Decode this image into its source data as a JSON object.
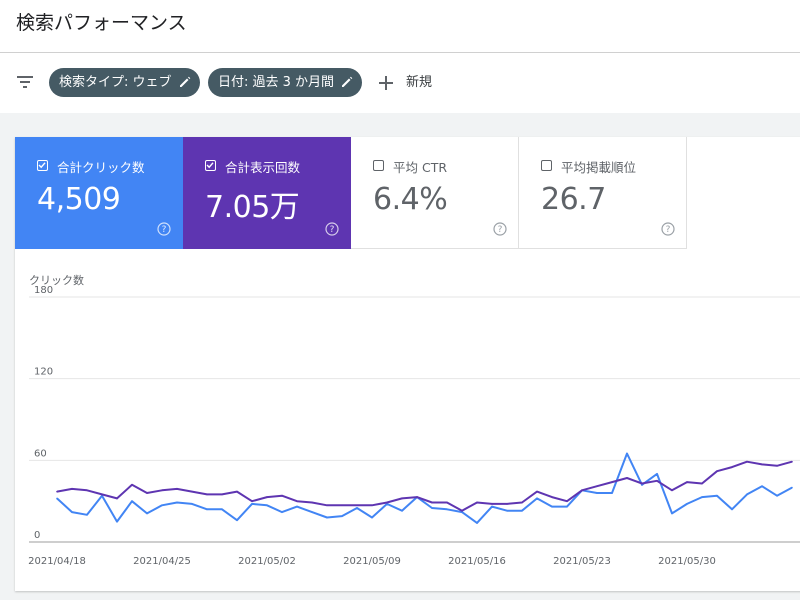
{
  "header": {
    "title": "検索パフォーマンス"
  },
  "filters": {
    "chips": [
      {
        "label": "検索タイプ: ウェブ"
      },
      {
        "label": "日付: 過去 3 か月間"
      }
    ],
    "new_label": "新規"
  },
  "metrics": {
    "clicks": {
      "label": "合計クリック数",
      "value": "4,509",
      "checked": true,
      "color": "#4285f4"
    },
    "impressions": {
      "label": "合計表示回数",
      "value": "7.05万",
      "checked": true,
      "color": "#5e35b1"
    },
    "ctr": {
      "label": "平均 CTR",
      "value": "6.4%",
      "checked": false
    },
    "position": {
      "label": "平均掲載順位",
      "value": "26.7",
      "checked": false
    }
  },
  "chart_data": {
    "type": "line",
    "ylabel": "クリック数",
    "ylim": [
      0,
      180
    ],
    "yticks": [
      "0",
      "60",
      "120",
      "180"
    ],
    "x": [
      "2021/04/18",
      "2021/04/19",
      "2021/04/20",
      "2021/04/21",
      "2021/04/22",
      "2021/04/23",
      "2021/04/24",
      "2021/04/25",
      "2021/04/26",
      "2021/04/27",
      "2021/04/28",
      "2021/04/29",
      "2021/04/30",
      "2021/05/01",
      "2021/05/02",
      "2021/05/03",
      "2021/05/04",
      "2021/05/05",
      "2021/05/06",
      "2021/05/07",
      "2021/05/08",
      "2021/05/09",
      "2021/05/10",
      "2021/05/11",
      "2021/05/12",
      "2021/05/13",
      "2021/05/14",
      "2021/05/15",
      "2021/05/16",
      "2021/05/17",
      "2021/05/18",
      "2021/05/19",
      "2021/05/20",
      "2021/05/21",
      "2021/05/22",
      "2021/05/23",
      "2021/05/24",
      "2021/05/25",
      "2021/05/26",
      "2021/05/27",
      "2021/05/28",
      "2021/05/29",
      "2021/05/30",
      "2021/05/31",
      "2021/06/01",
      "2021/06/02",
      "2021/06/03",
      "2021/06/04",
      "2021/06/05",
      "2021/06/06"
    ],
    "xticks": [
      "2021/04/18",
      "2021/04/25",
      "2021/05/02",
      "2021/05/09",
      "2021/05/16",
      "2021/05/23",
      "2021/05/30"
    ],
    "series": [
      {
        "color": "#4285f4",
        "values": [
          32,
          22,
          20,
          34,
          15,
          30,
          21,
          27,
          29,
          28,
          24,
          24,
          16,
          28,
          27,
          22,
          26,
          22,
          18,
          19,
          25,
          18,
          28,
          23,
          33,
          25,
          24,
          22,
          14,
          26,
          23,
          23,
          32,
          26,
          26,
          38,
          36,
          36,
          65,
          42,
          50,
          21,
          28,
          33,
          34,
          24,
          35,
          41,
          34,
          40
        ]
      },
      {
        "color": "#5e35b1",
        "values": [
          37,
          39,
          38,
          35,
          32,
          42,
          36,
          38,
          39,
          37,
          35,
          35,
          37,
          30,
          33,
          34,
          30,
          29,
          27,
          27,
          27,
          27,
          29,
          32,
          33,
          29,
          29,
          23,
          29,
          28,
          28,
          29,
          37,
          33,
          30,
          38,
          41,
          44,
          47,
          43,
          45,
          38,
          44,
          43,
          52,
          55,
          59,
          57,
          56,
          59
        ]
      }
    ]
  }
}
